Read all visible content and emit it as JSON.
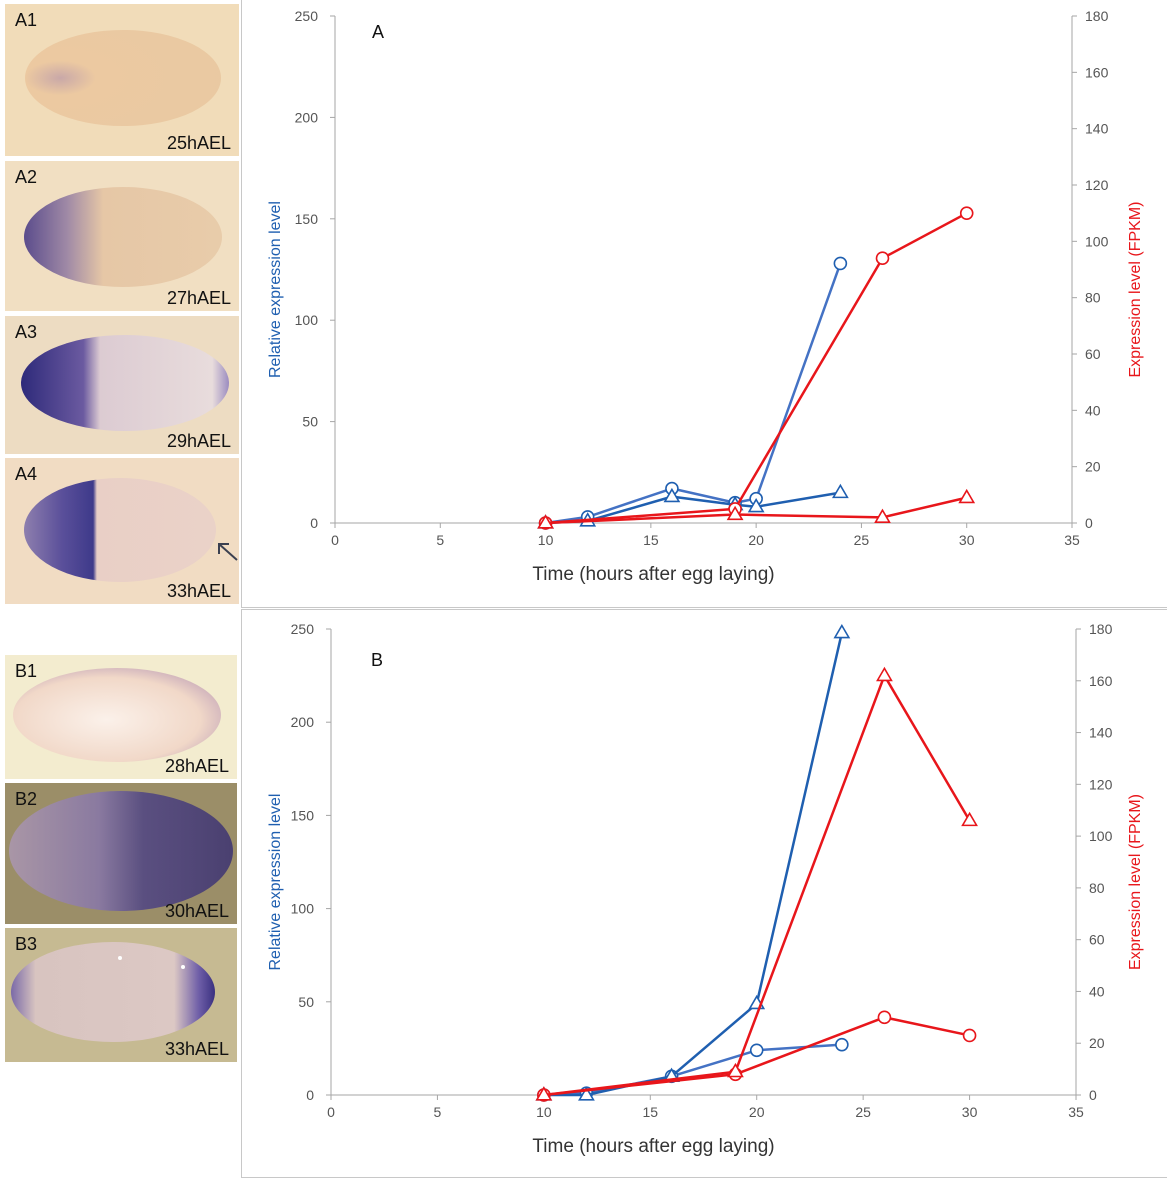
{
  "embryo_panels": [
    {
      "id": "A1",
      "stage": "25hAEL"
    },
    {
      "id": "A2",
      "stage": "27hAEL"
    },
    {
      "id": "A3",
      "stage": "29hAEL"
    },
    {
      "id": "A4",
      "stage": "33hAEL"
    },
    {
      "id": "B1",
      "stage": "28hAEL"
    },
    {
      "id": "B2",
      "stage": "30hAEL"
    },
    {
      "id": "B3",
      "stage": "33hAEL"
    }
  ],
  "colors": {
    "blue": "#1f5fb0",
    "blue_line": "#4472c4",
    "red": "#e8161b",
    "axis": "#a6a6a6",
    "text": "#555555"
  },
  "chart_data": [
    {
      "type": "line",
      "panel_label": "A",
      "xlabel": "Time (hours after egg laying)",
      "ylabel_left": "Relative expression  level",
      "ylabel_right": "Expression level (FPKM)",
      "xlim": [
        0,
        35
      ],
      "xticks": [
        0,
        5,
        10,
        15,
        20,
        25,
        30,
        35
      ],
      "ylim_left": [
        0,
        250
      ],
      "yticks_left": [
        0,
        50,
        100,
        150,
        200,
        250
      ],
      "ylim_right": [
        0,
        180
      ],
      "yticks_right": [
        0,
        20,
        40,
        60,
        80,
        100,
        120,
        140,
        160,
        180
      ],
      "grid": false,
      "series": [
        {
          "axis": "left",
          "color": "blue",
          "marker": "circle",
          "x": [
            10,
            12,
            16,
            19,
            20,
            24
          ],
          "y": [
            0,
            3,
            17,
            10,
            12,
            128
          ]
        },
        {
          "axis": "left",
          "color": "blue",
          "marker": "triangle",
          "x": [
            10,
            12,
            16,
            19,
            20,
            24
          ],
          "y": [
            0,
            1,
            13,
            9,
            8,
            15
          ]
        },
        {
          "axis": "right",
          "color": "red",
          "marker": "circle",
          "x": [
            10,
            19,
            26,
            30
          ],
          "y": [
            0,
            5,
            94,
            110
          ]
        },
        {
          "axis": "right",
          "color": "red",
          "marker": "triangle",
          "x": [
            10,
            19,
            26,
            30
          ],
          "y": [
            0,
            3,
            2,
            9
          ]
        }
      ]
    },
    {
      "type": "line",
      "panel_label": "B",
      "xlabel": "Time (hours after egg laying)",
      "ylabel_left": "Relative expression  level",
      "ylabel_right": "Expression level (FPKM)",
      "xlim": [
        0,
        35
      ],
      "xticks": [
        0,
        5,
        10,
        15,
        20,
        25,
        30,
        35
      ],
      "ylim_left": [
        0,
        250
      ],
      "yticks_left": [
        0,
        50,
        100,
        150,
        200,
        250
      ],
      "ylim_right": [
        0,
        180
      ],
      "yticks_right": [
        0,
        20,
        40,
        60,
        80,
        100,
        120,
        140,
        160,
        180
      ],
      "grid": false,
      "series": [
        {
          "axis": "left",
          "color": "blue",
          "marker": "circle",
          "x": [
            10,
            12,
            16,
            20,
            24
          ],
          "y": [
            0,
            1,
            10,
            24,
            27
          ]
        },
        {
          "axis": "left",
          "color": "blue",
          "marker": "triangle",
          "x": [
            10,
            12,
            16,
            20,
            24
          ],
          "y": [
            0,
            0,
            10,
            49,
            248
          ]
        },
        {
          "axis": "right",
          "color": "red",
          "marker": "circle",
          "x": [
            10,
            19,
            26,
            30
          ],
          "y": [
            0,
            8,
            30,
            23
          ]
        },
        {
          "axis": "right",
          "color": "red",
          "marker": "triangle",
          "x": [
            10,
            19,
            26,
            30
          ],
          "y": [
            0,
            9,
            162,
            106
          ]
        }
      ]
    }
  ]
}
